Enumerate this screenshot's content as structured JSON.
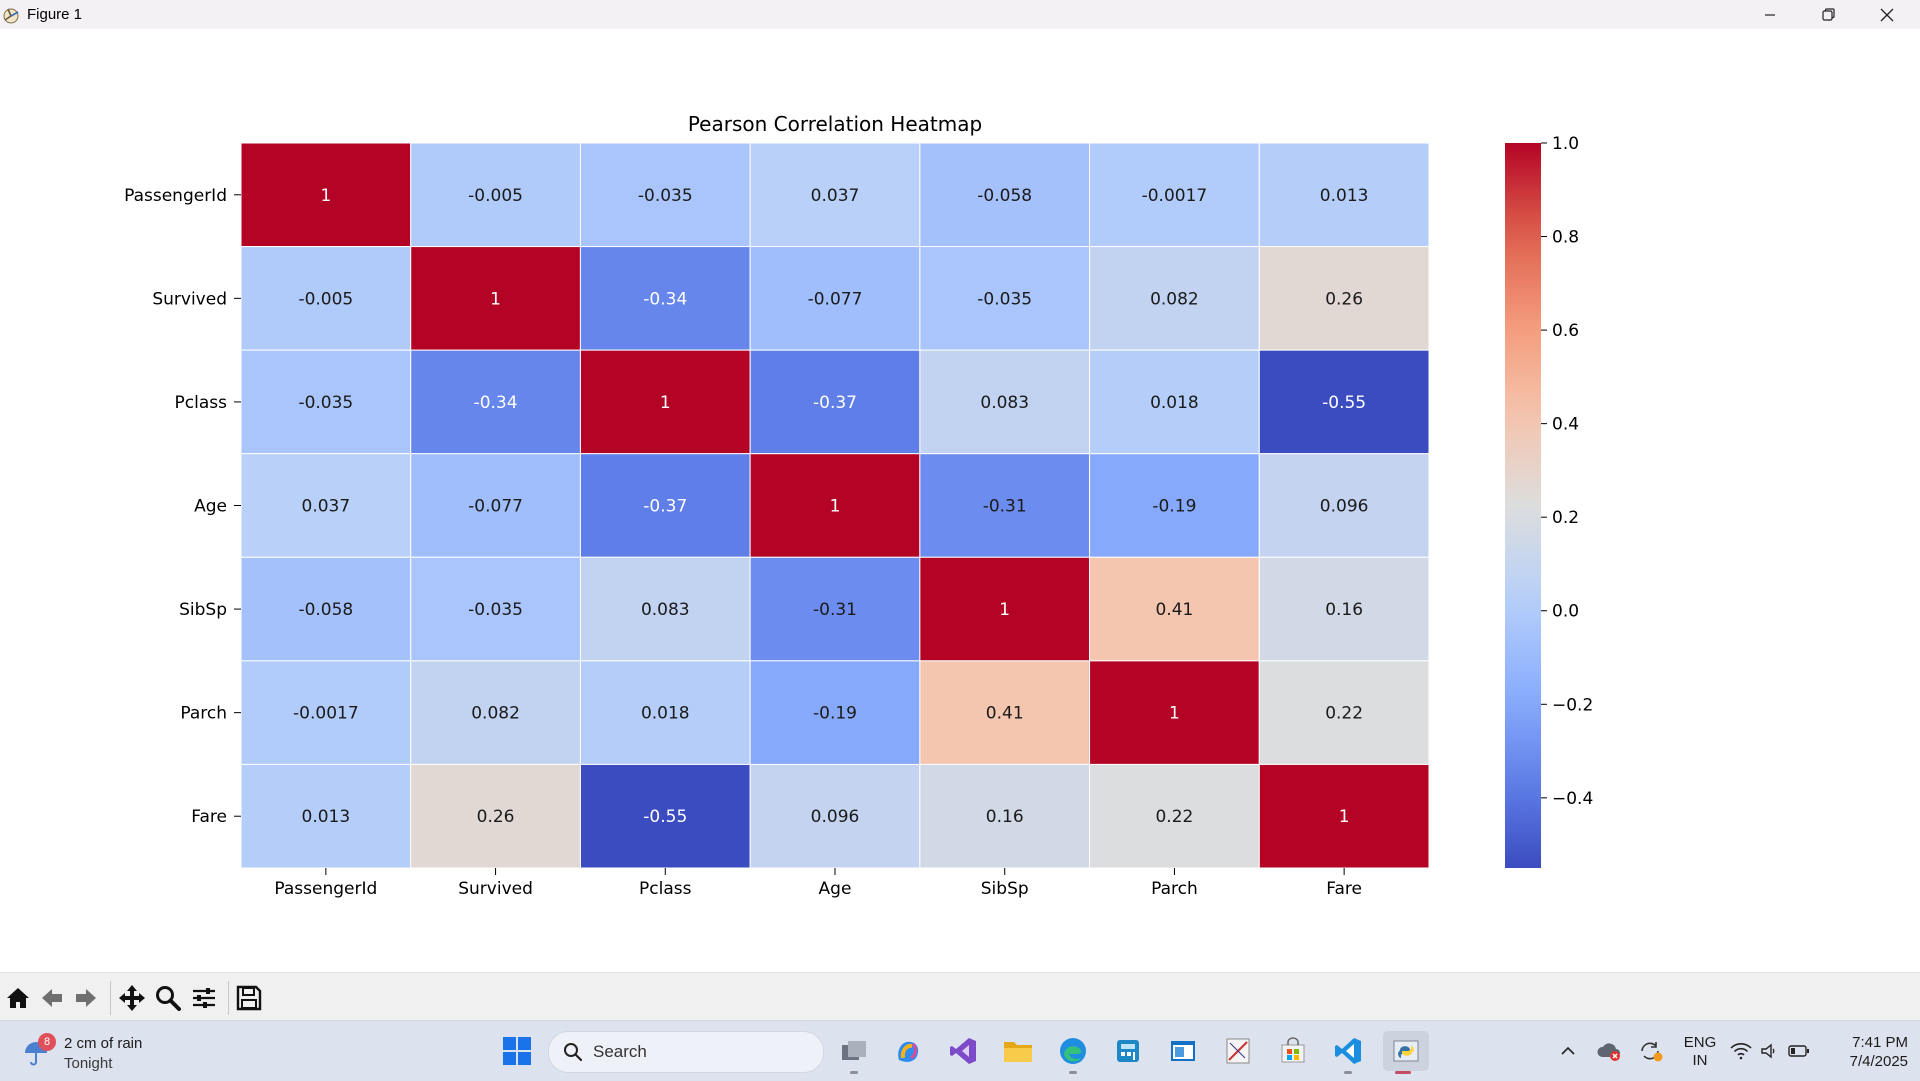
{
  "window": {
    "title": "Figure 1"
  },
  "colors": {
    "cmap": "coolwarm",
    "titlebar_bg": "#f4f1f5",
    "toolbar_bg": "#f0f0f0",
    "taskbar_bg": "#dde3ee",
    "active_indicator": "#c44d63",
    "weather_badge": "#e0505c"
  },
  "toolbar": {
    "buttons": [
      {
        "name": "home-icon",
        "label": "Home"
      },
      {
        "name": "back-arrow-icon",
        "label": "Back"
      },
      {
        "name": "forward-arrow-icon",
        "label": "Forward"
      },
      {
        "name": "pan-icon",
        "label": "Pan"
      },
      {
        "name": "zoom-icon",
        "label": "Zoom"
      },
      {
        "name": "configure-subplots-icon",
        "label": "Subplots"
      },
      {
        "name": "save-icon",
        "label": "Save"
      }
    ]
  },
  "chart_data": {
    "type": "heatmap",
    "title": "Pearson Correlation Heatmap",
    "xlabel": "",
    "ylabel": "",
    "columns": [
      "PassengerId",
      "Survived",
      "Pclass",
      "Age",
      "SibSp",
      "Parch",
      "Fare"
    ],
    "rows": [
      "PassengerId",
      "Survived",
      "Pclass",
      "Age",
      "SibSp",
      "Parch",
      "Fare"
    ],
    "values": [
      [
        1,
        -0.005,
        -0.035,
        0.037,
        -0.058,
        -0.0017,
        0.013
      ],
      [
        -0.005,
        1,
        -0.34,
        -0.077,
        -0.035,
        0.082,
        0.26
      ],
      [
        -0.035,
        -0.34,
        1,
        -0.37,
        0.083,
        0.018,
        -0.55
      ],
      [
        0.037,
        -0.077,
        -0.37,
        1,
        -0.31,
        -0.19,
        0.096
      ],
      [
        -0.058,
        -0.035,
        0.083,
        -0.31,
        1,
        0.41,
        0.16
      ],
      [
        -0.0017,
        0.082,
        0.018,
        -0.19,
        0.41,
        1,
        0.22
      ],
      [
        0.013,
        0.26,
        -0.55,
        0.096,
        0.16,
        0.22,
        1
      ]
    ],
    "annot": true,
    "colormap": "coolwarm",
    "vmin": -0.55,
    "vmax": 1.0,
    "colorbar_ticks": [
      1.0,
      0.8,
      0.6,
      0.4,
      0.2,
      0.0,
      -0.2,
      -0.4
    ],
    "colorbar_tick_labels": [
      "1.0",
      "0.8",
      "0.6",
      "0.4",
      "0.2",
      "0.0",
      "−0.2",
      "−0.4"
    ]
  },
  "taskbar": {
    "weather": {
      "badge": "8",
      "main": "2 cm of rain",
      "sub": "Tonight"
    },
    "search_placeholder": "Search",
    "apps": [
      {
        "name": "start-icon",
        "label": "Start"
      },
      {
        "name": "task-view-icon",
        "label": "Task View"
      },
      {
        "name": "copilot-icon",
        "label": "Copilot"
      },
      {
        "name": "visual-studio-icon",
        "label": "Visual Studio"
      },
      {
        "name": "file-explorer-icon",
        "label": "File Explorer"
      },
      {
        "name": "edge-icon",
        "label": "Microsoft Edge"
      },
      {
        "name": "calculator-app-icon",
        "label": "App"
      },
      {
        "name": "window-app-icon",
        "label": "App"
      },
      {
        "name": "paint-app-icon",
        "label": "App"
      },
      {
        "name": "store-icon",
        "label": "Microsoft Store"
      },
      {
        "name": "vscode-icon",
        "label": "Visual Studio Code"
      },
      {
        "name": "python-icon",
        "label": "Python"
      }
    ],
    "tray": {
      "lang_line1": "ENG",
      "lang_line2": "IN",
      "time": "7:41 PM",
      "date": "7/4/2025"
    }
  }
}
